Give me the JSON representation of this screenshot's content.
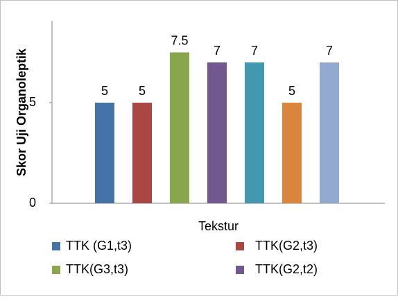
{
  "chart_data": {
    "type": "bar",
    "y_label": "Skor Uji Organoleptik",
    "categories": [
      "Tekstur"
    ],
    "series": [
      {
        "name": "TTK (G1,t3)",
        "color": "#4572a7",
        "values": [
          5
        ]
      },
      {
        "name": "TTK(G2,t3)",
        "color": "#aa4643",
        "values": [
          5
        ]
      },
      {
        "name": "TTK(G3,t3)",
        "color": "#89a54e",
        "values": [
          7.5
        ]
      },
      {
        "name": "TTK(G2,t2)",
        "color": "#71588f",
        "values": [
          7
        ]
      },
      {
        "color": "#4198af",
        "values": [
          7
        ]
      },
      {
        "color": "#db843d",
        "values": [
          5
        ]
      },
      {
        "color": "#93a9cf",
        "values": [
          7
        ]
      }
    ],
    "ylim": [
      0,
      9
    ],
    "yticks": [
      0,
      5
    ]
  }
}
